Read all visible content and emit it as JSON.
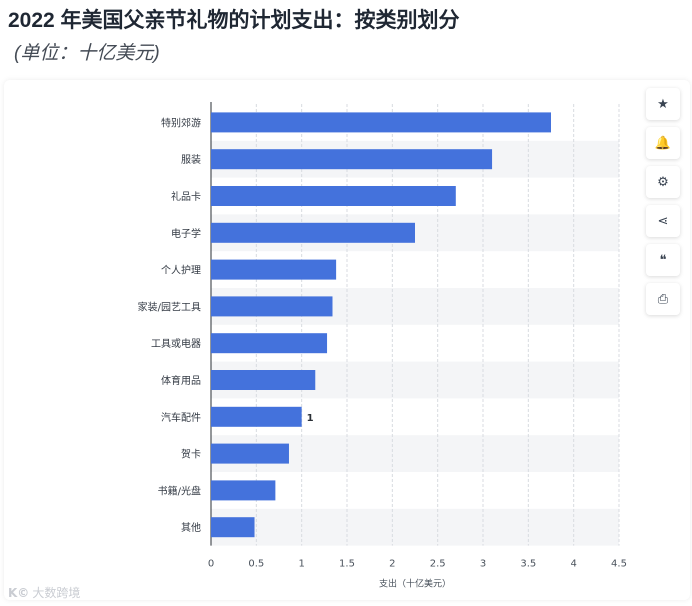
{
  "header": {
    "title": "2022 年美国父亲节礼物的计划支出：按类别划分",
    "subtitle": "(单位：十亿美元)"
  },
  "toolbar": {
    "buttons": [
      {
        "name": "star-icon",
        "glyph": "★"
      },
      {
        "name": "bell-icon",
        "glyph": "🔔"
      },
      {
        "name": "gear-icon",
        "glyph": "⚙"
      },
      {
        "name": "share-icon",
        "glyph": "⋖"
      },
      {
        "name": "quote-icon",
        "glyph": "❝"
      },
      {
        "name": "print-icon",
        "glyph": "⎙"
      }
    ]
  },
  "watermark": {
    "logo": "K©",
    "text": "大数跨境"
  },
  "chart_data": {
    "type": "bar",
    "orientation": "horizontal",
    "categories": [
      "特别郊游",
      "服装",
      "礼品卡",
      "电子学",
      "个人护理",
      "家装/园艺工具",
      "工具或电器",
      "体育用品",
      "汽车配件",
      "贺卡",
      "书籍/光盘",
      "其他"
    ],
    "values": [
      3.75,
      3.1,
      2.7,
      2.25,
      1.38,
      1.34,
      1.28,
      1.15,
      1.0,
      0.86,
      0.71,
      0.48
    ],
    "data_labels": [
      "",
      "",
      "",
      "",
      "",
      "",
      "",
      "",
      "1",
      "",
      "",
      ""
    ],
    "xlabel": "支出（十亿美元）",
    "ylabel": "",
    "xlim": [
      0,
      4.5
    ],
    "xticks": [
      "0",
      "0.5",
      "1",
      "1.5",
      "2",
      "2.5",
      "3",
      "3.5",
      "4",
      "4.5"
    ],
    "grid": true,
    "colors": {
      "bar": "#4472dc",
      "grid": "#d8dbe0",
      "stripe": "#f4f5f7"
    }
  }
}
